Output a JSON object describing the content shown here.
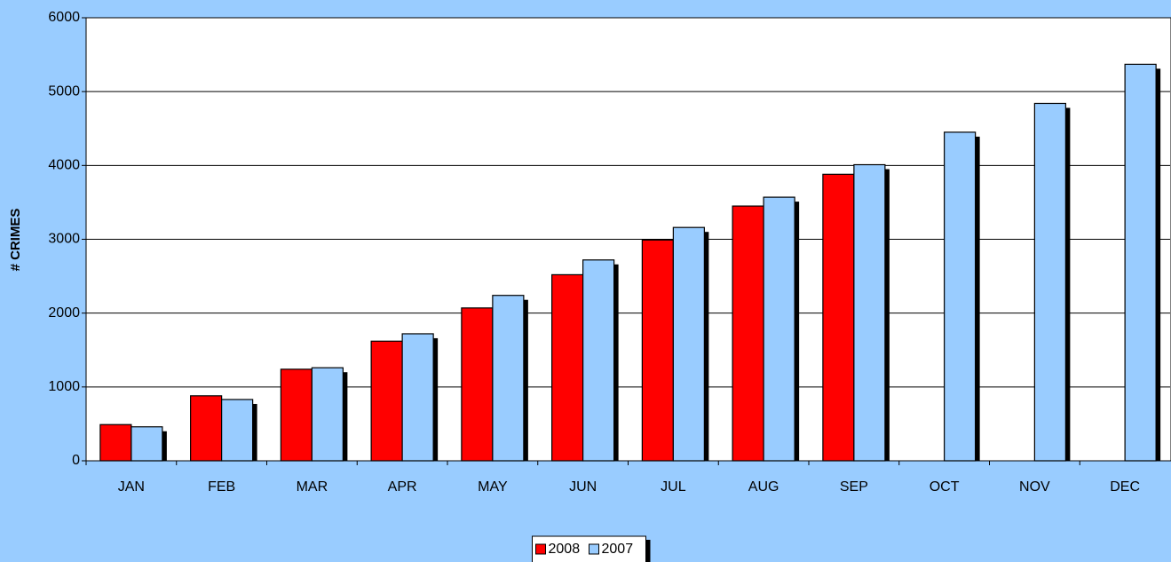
{
  "chart_data": {
    "type": "bar",
    "y_label": "# CRIMES",
    "categories": [
      "JAN",
      "FEB",
      "MAR",
      "APR",
      "MAY",
      "JUN",
      "JUL",
      "AUG",
      "SEP",
      "OCT",
      "NOV",
      "DEC"
    ],
    "series": [
      {
        "name": "2008",
        "color": "#ff0000",
        "values": [
          490,
          880,
          1240,
          1620,
          2070,
          2520,
          2990,
          3450,
          3880,
          null,
          null,
          null
        ]
      },
      {
        "name": "2007",
        "color": "#99ccff",
        "values": [
          460,
          830,
          1260,
          1720,
          2240,
          2720,
          3160,
          3570,
          4010,
          4450,
          4840,
          5370
        ]
      }
    ],
    "ylim": [
      0,
      6000
    ],
    "yticks": [
      0,
      1000,
      2000,
      3000,
      4000,
      5000,
      6000
    ],
    "grid": true,
    "legend": "bottom"
  }
}
